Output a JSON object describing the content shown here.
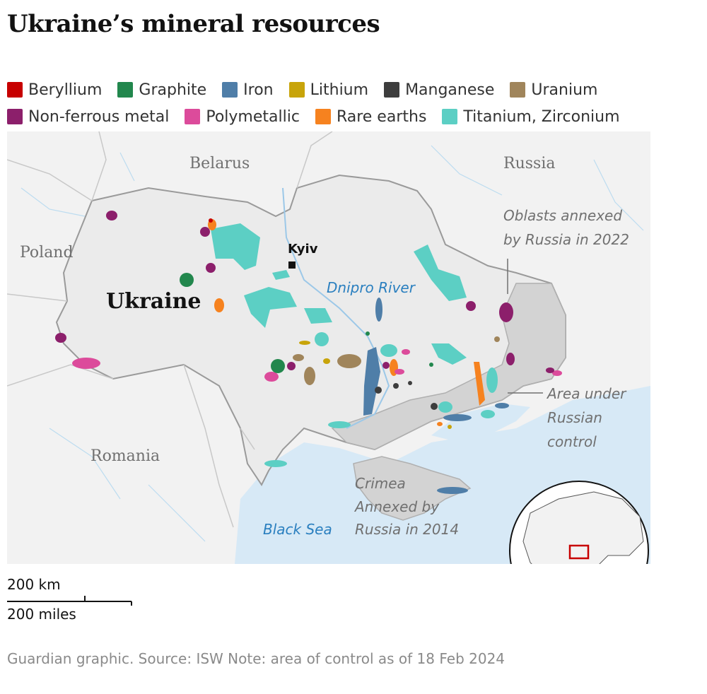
{
  "title": "Ukraine’s mineral resources",
  "legend": [
    {
      "label": "Beryllium",
      "color": "#c70000"
    },
    {
      "label": "Graphite",
      "color": "#22874d"
    },
    {
      "label": "Iron",
      "color": "#4f7ea8"
    },
    {
      "label": "Lithium",
      "color": "#c8a40a"
    },
    {
      "label": "Manganese",
      "color": "#3d3d3d"
    },
    {
      "label": "Uranium",
      "color": "#a0855b"
    },
    {
      "label": "Non-ferrous metal",
      "color": "#8c1f6b"
    },
    {
      "label": "Polymetallic",
      "color": "#dc4b9b"
    },
    {
      "label": "Rare earths",
      "color": "#f6821f"
    },
    {
      "label": "Titanium, Zirconium",
      "color": "#5ccfc4"
    }
  ],
  "map": {
    "labels": {
      "belarus": "Belarus",
      "russia": "Russia",
      "poland": "Poland",
      "romania": "Romania",
      "ukraine": "Ukraine",
      "kyiv": "Kyiv",
      "dnipro": "Dnipro River",
      "black_sea": "Black Sea"
    },
    "annotations": {
      "oblasts": [
        "Oblasts annexed",
        "by Russia in 2022"
      ],
      "area_control": [
        "Area under",
        "Russian",
        "control"
      ],
      "crimea": [
        "Crimea",
        "Annexed by",
        "Russia in 2014"
      ]
    }
  },
  "scale": {
    "km": "200 km",
    "miles": "200 miles"
  },
  "source": "Guardian graphic. Source: ISW Note: area of control as of 18 Feb 2024"
}
